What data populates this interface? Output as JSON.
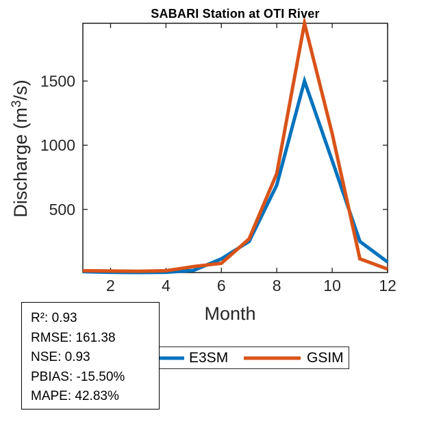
{
  "title": "SABARI  Station at  OTI  River",
  "labels": {
    "xlabel": "Month",
    "ylabel_pre": "Discharge (m",
    "ylabel_sup": "3",
    "ylabel_post": "/s)"
  },
  "stats_box": {
    "lines": [
      "R²: 0.93",
      "RMSE: 161.38",
      "NSE: 0.93",
      "PBIAS: -15.50%",
      "MAPE: 42.83%"
    ]
  },
  "legend": {
    "items": [
      {
        "label": "E3SM",
        "color": "#0072BD"
      },
      {
        "label": "GSIM",
        "color": "#D95319"
      }
    ],
    "position": "below-axis"
  },
  "chart_data": {
    "type": "line",
    "title": "SABARI  Station at  OTI  River",
    "xlabel": "Month",
    "ylabel": "Discharge (m³/s)",
    "x": [
      1,
      2,
      3,
      4,
      5,
      6,
      7,
      8,
      9,
      10,
      11,
      12
    ],
    "series": [
      {
        "name": "E3SM",
        "color": "#0072BD",
        "values": [
          15,
          10,
          8,
          10,
          25,
          115,
          250,
          690,
          1500,
          880,
          250,
          90
        ]
      },
      {
        "name": "GSIM",
        "color": "#D95319",
        "values": [
          22,
          20,
          18,
          22,
          55,
          80,
          270,
          780,
          1950,
          1090,
          115,
          35
        ]
      }
    ],
    "xlim": [
      1,
      12
    ],
    "ylim": [
      8,
      1950
    ],
    "xticks": [
      2,
      4,
      6,
      8,
      10,
      12
    ],
    "yticks": [
      500,
      1000,
      1500
    ],
    "grid": false,
    "frame": "box",
    "tick_direction": "in",
    "tick_label_color": "#262626",
    "line_width": 5
  }
}
